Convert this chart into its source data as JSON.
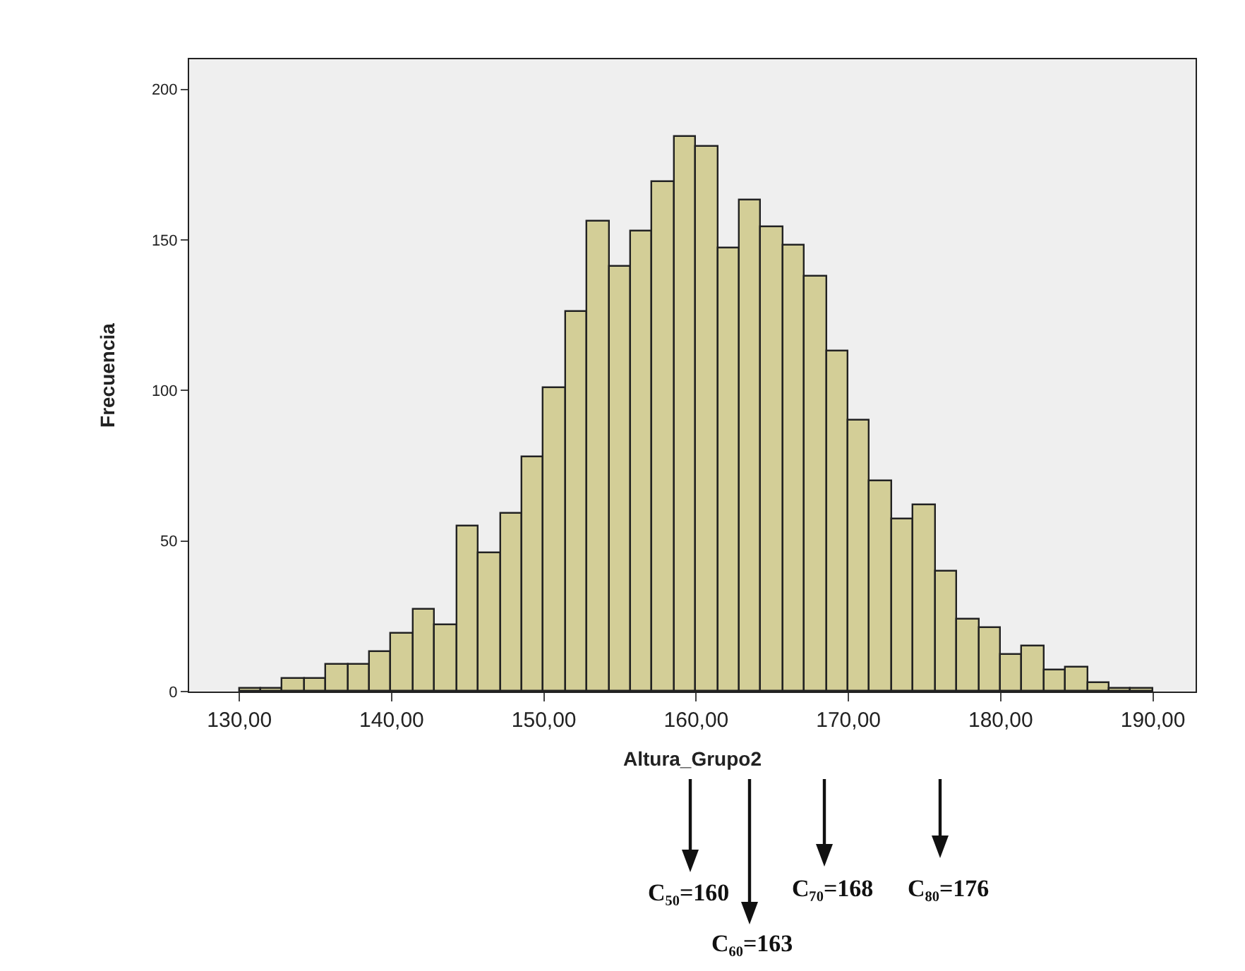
{
  "chart_data": {
    "type": "histogram",
    "xlabel": "Altura_Grupo2",
    "ylabel": "Frecuencia",
    "bins": [
      130,
      131.4286,
      132.8571,
      134.2857,
      135.7143,
      137.1429,
      138.5714,
      140,
      141.4286,
      142.8571,
      144.2857,
      145.7143,
      147.1429,
      148.5714,
      150,
      151.4286,
      152.8571,
      154.2857,
      155.7143,
      157.1429,
      158.5714,
      160,
      161.4286,
      162.8571,
      164.2857,
      165.7143,
      167.1429,
      168.5714,
      170,
      171.4286,
      172.8571,
      174.2857,
      175.7143,
      177.1429,
      178.5714,
      180,
      181.4286,
      182.8571,
      184.2857,
      185.7143,
      187.1429,
      188.5714,
      190
    ],
    "values": [
      1,
      1,
      4,
      4,
      9,
      9,
      13,
      19,
      27,
      22,
      55,
      46,
      59,
      78,
      101,
      126,
      156,
      141,
      153,
      169,
      184,
      181,
      147,
      163,
      154,
      148,
      138,
      113,
      90,
      70,
      57,
      62,
      40,
      24,
      21,
      12,
      15,
      7,
      8,
      3,
      1,
      1
    ],
    "color": "#d3ce97",
    "xlim": [
      126.7,
      192.8
    ],
    "ylim": [
      0,
      210
    ],
    "xticks": [
      {
        "value": 130,
        "label": "130,00"
      },
      {
        "value": 140,
        "label": "140,00"
      },
      {
        "value": 150,
        "label": "150,00"
      },
      {
        "value": 160,
        "label": "160,00"
      },
      {
        "value": 170,
        "label": "170,00"
      },
      {
        "value": 180,
        "label": "180,00"
      },
      {
        "value": 190,
        "label": "190,00"
      }
    ],
    "yticks": [
      0,
      50,
      100,
      150,
      200
    ],
    "annotations": [
      "C₅₀=160",
      "C₆₀=163",
      "C₇₀=168",
      "C₈₀=176"
    ]
  }
}
